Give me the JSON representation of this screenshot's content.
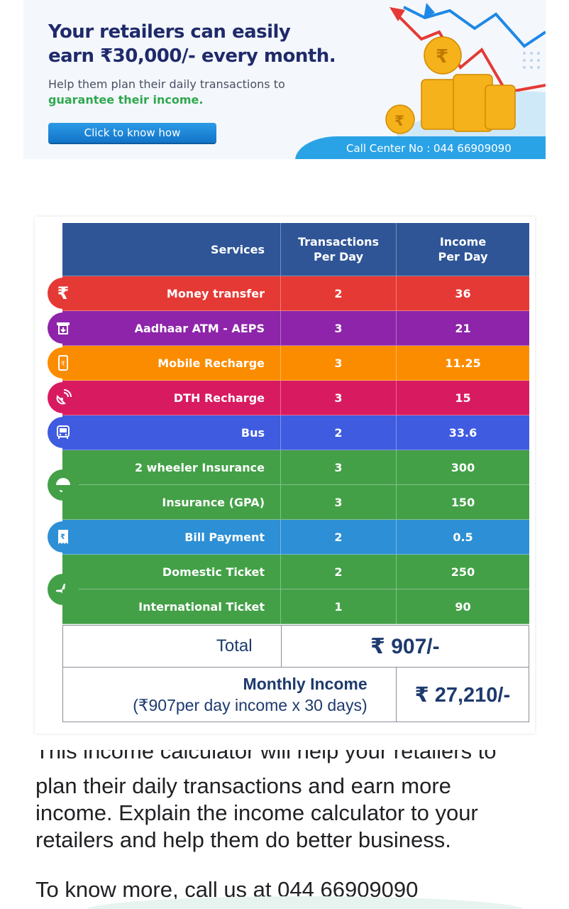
{
  "banner": {
    "title_line1": "Your retailers can easily",
    "title_line2_prefix": "earn ",
    "title_line2_amount": "₹30,000/-",
    "title_line2_suffix": " every month.",
    "sub_line1": "Help them plan their daily transactions to",
    "sub_line2": "guarantee their income.",
    "button_label": "Click to know how",
    "call_center": "Call Center No : 044 66909090"
  },
  "table": {
    "headers": {
      "services": "Services",
      "transactions_l1": "Transactions",
      "transactions_l2": "Per Day",
      "income_l1": "Income",
      "income_l2": "Per Day"
    },
    "rows": [
      {
        "service": "Money transfer",
        "transactions": "2",
        "income": "36",
        "color": "#e53935",
        "icon": "rupee-icon"
      },
      {
        "service": "Aadhaar  ATM - AEPS",
        "transactions": "3",
        "income": "21",
        "color": "#8e24aa",
        "icon": "atm-icon"
      },
      {
        "service": "Mobile Recharge",
        "transactions": "3",
        "income": "11.25",
        "color": "#fb8c00",
        "icon": "mobile-icon"
      },
      {
        "service": "DTH Recharge",
        "transactions": "3",
        "income": "15",
        "color": "#d81b60",
        "icon": "satellite-dish-icon"
      },
      {
        "service": "Bus",
        "transactions": "2",
        "income": "33.6",
        "color": "#3f5be0",
        "icon": "bus-icon"
      },
      {
        "service": "2 wheeler Insurance",
        "transactions": "3",
        "income": "300",
        "color": "#43a047",
        "icon": "umbrella-icon"
      },
      {
        "service": "Insurance (GPA)",
        "transactions": "3",
        "income": "150",
        "color": "#43a047",
        "icon": ""
      },
      {
        "service": "Bill Payment",
        "transactions": "2",
        "income": "0.5",
        "color": "#2d8fd5",
        "icon": "bill-icon"
      },
      {
        "service": "Domestic Ticket",
        "transactions": "2",
        "income": "250",
        "color": "#43a047",
        "icon": "airplane-icon"
      },
      {
        "service": "International Ticket",
        "transactions": "1",
        "income": "90",
        "color": "#43a047",
        "icon": ""
      }
    ],
    "total_label": "Total",
    "total_value": "₹ 907/-",
    "monthly_label": "Monthly Income",
    "monthly_note": "(₹907per day income x 30 days)",
    "monthly_value": "₹ 27,210/-"
  },
  "text": {
    "partial_line": "This income calculator will help your retailers to",
    "line1": "plan their daily transactions and earn more",
    "line2": "income. Explain the income calculator to your",
    "line3": "retailers and help them do better business.",
    "contact": "To know more, call us at 044 66909090"
  }
}
